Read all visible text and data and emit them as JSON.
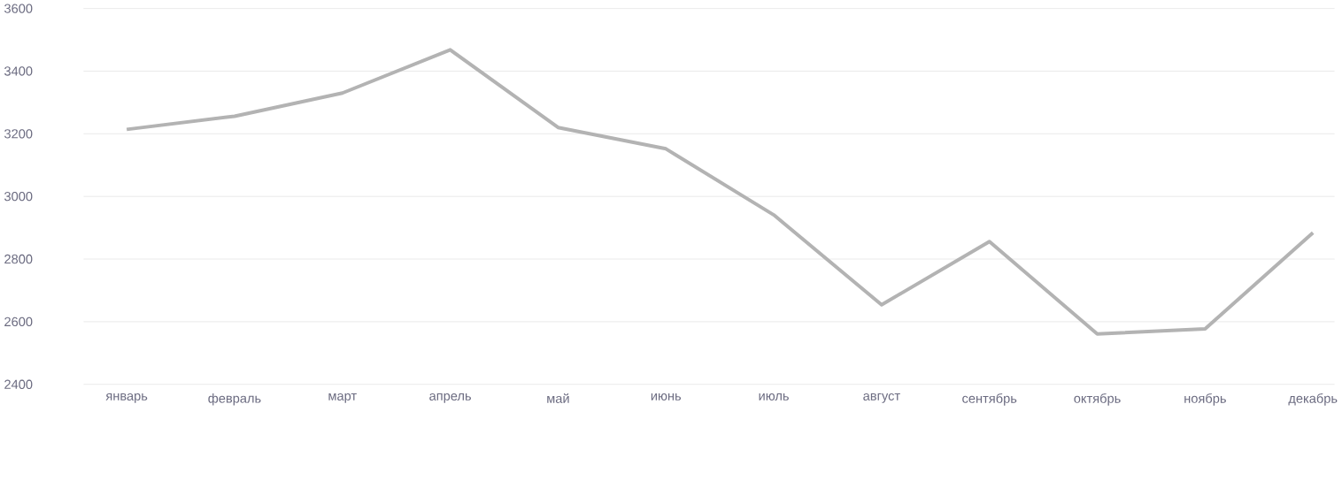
{
  "chart_data": {
    "type": "line",
    "categories": [
      "январь",
      "февраль",
      "март",
      "апрель",
      "май",
      "июнь",
      "июль",
      "август",
      "сентябрь",
      "октябрь",
      "ноябрь",
      "декабрь"
    ],
    "series": [
      {
        "color": "#b3b3b3",
        "values": [
          3214,
          3256,
          3330,
          3468,
          3220,
          3152,
          2941,
          2654,
          2856,
          2561,
          2577,
          2884
        ]
      }
    ],
    "ylim": [
      2400,
      3600
    ],
    "yticks": [
      2400,
      2600,
      2800,
      3000,
      3200,
      3400,
      3600
    ],
    "grid": "y",
    "marker": "none",
    "line_style": "solid"
  }
}
